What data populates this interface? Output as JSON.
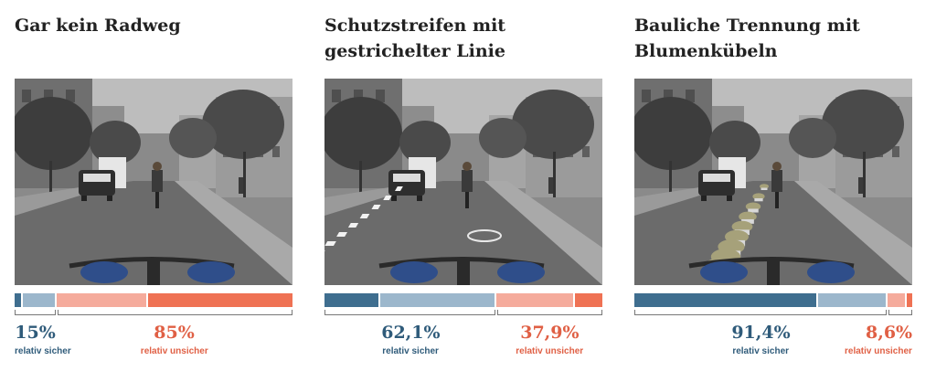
{
  "colors": {
    "very_safe": "#3f6e8f",
    "rather_safe": "#9cb7cc",
    "rather_unsafe": "#f5ab9c",
    "very_unsafe": "#ef7254",
    "safe_text": "#2f5b7a",
    "unsafe_text": "#e06045"
  },
  "panels": [
    {
      "title": "Gar kein Radweg",
      "image_icon": "street-scene-no-bike-lane",
      "segments": [
        3,
        12,
        33,
        52
      ],
      "safe_pct": "15%",
      "unsafe_pct": "85%",
      "safe_label": "relativ sicher",
      "unsafe_label": "relativ unsicher"
    },
    {
      "title": "Schutzstreifen mit gestrichelter Linie",
      "image_icon": "street-scene-dashed-lane",
      "segments": [
        20,
        42,
        28,
        10
      ],
      "safe_pct": "62,1%",
      "unsafe_pct": "37,9%",
      "safe_label": "relativ sicher",
      "unsafe_label": "relativ unsicher"
    },
    {
      "title": "Bauliche Trennung mit Blumenkübeln",
      "image_icon": "street-scene-planters",
      "segments": [
        66,
        25,
        7,
        2
      ],
      "safe_pct": "91,4%",
      "unsafe_pct": "8,6%",
      "safe_label": "relativ sicher",
      "unsafe_label": "relativ unsicher"
    }
  ]
}
